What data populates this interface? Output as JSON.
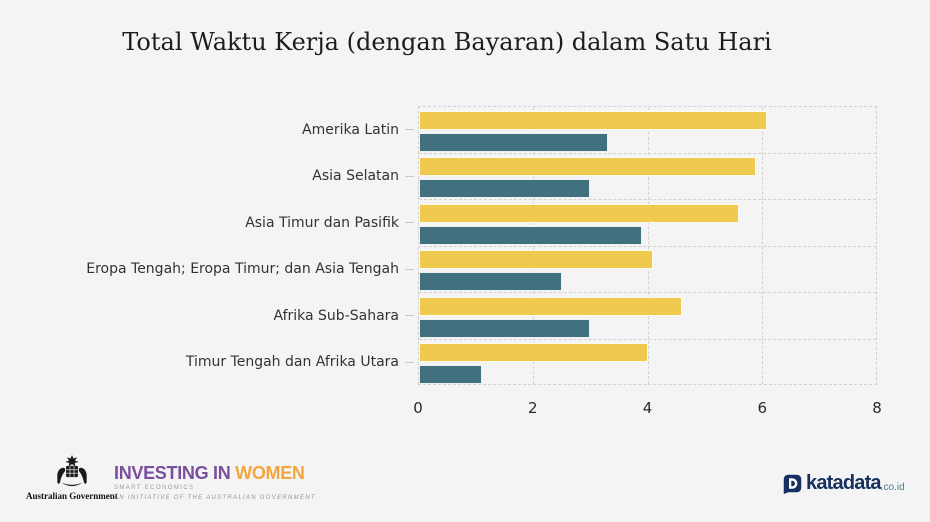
{
  "title": "Total Waktu Kerja (dengan Bayaran) dalam Satu Hari",
  "chart_data": {
    "type": "bar",
    "orientation": "horizontal",
    "title": "Total Waktu Kerja (dengan Bayaran) dalam Satu Hari",
    "categories": [
      "Amerika Latin",
      "Asia Selatan",
      "Asia Timur dan Pasifik",
      "Eropa Tengah; Eropa Timur; dan Asia Tengah",
      "Afrika Sub-Sahara",
      "Timur Tengah dan Afrika Utara"
    ],
    "series": [
      {
        "name": "series-1",
        "color": "#F0C94F",
        "values": [
          6.1,
          5.9,
          5.6,
          4.1,
          4.6,
          4.0
        ]
      },
      {
        "name": "series-2",
        "color": "#41717E",
        "values": [
          3.3,
          3.0,
          3.9,
          2.5,
          3.0,
          1.1
        ]
      }
    ],
    "xlim": [
      0,
      8
    ],
    "x_ticks": [
      "0",
      "2",
      "4",
      "6",
      "8"
    ],
    "grid": "dashed",
    "legend": "none"
  },
  "footer": {
    "aus_gov_label": "Australian Government",
    "iw_title_part1": "INVESTING IN ",
    "iw_title_part2": "WOMEN",
    "iw_subtitle": "SMART ECONOMICS",
    "iw_tagline": "AN INITIATIVE OF THE AUSTRALIAN GOVERNMENT",
    "katadata_name": "katadata",
    "katadata_domain": ".co.id"
  },
  "colors": {
    "background": "#F4F4F4",
    "bar_yellow": "#F0C94F",
    "bar_teal": "#41717E",
    "grid": "#D2D2D2",
    "title_text": "#1D1D1D",
    "label_text": "#333333",
    "iw_purple": "#7A4F9D",
    "iw_orange": "#F2A63C",
    "katadata_navy": "#17305F",
    "katadata_domain_teal": "#4E7E8E"
  }
}
